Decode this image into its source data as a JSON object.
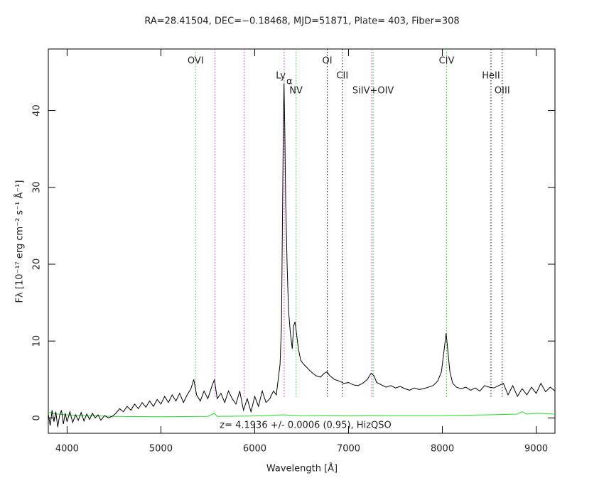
{
  "chart_data": {
    "type": "line",
    "title": "RA=28.41504, DEC=−0.18468, MJD=51871, Plate= 403, Fiber=308",
    "xlabel": "Wavelength [Å]",
    "ylabel": "Fλ [10⁻¹⁷ erg cm⁻² s⁻¹ Å⁻¹]",
    "annotation": "z= 4.1936 +/- 0.0006 (0.95), HizQSO",
    "xlim": [
      3800,
      9200
    ],
    "ylim": [
      -2,
      48
    ],
    "xticks": [
      4000,
      5000,
      6000,
      7000,
      8000,
      9000
    ],
    "yticks": [
      0,
      10,
      20,
      30,
      40
    ],
    "series": [
      {
        "color": "#000000",
        "x": [
          3800,
          3820,
          3840,
          3860,
          3880,
          3900,
          3920,
          3940,
          3960,
          3980,
          4000,
          4030,
          4060,
          4090,
          4120,
          4150,
          4180,
          4210,
          4240,
          4270,
          4300,
          4330,
          4360,
          4400,
          4440,
          4480,
          4520,
          4560,
          4600,
          4640,
          4680,
          4720,
          4760,
          4800,
          4840,
          4880,
          4920,
          4960,
          5000,
          5040,
          5080,
          5120,
          5160,
          5200,
          5240,
          5280,
          5320,
          5350,
          5380,
          5420,
          5460,
          5500,
          5540,
          5570,
          5600,
          5640,
          5680,
          5720,
          5760,
          5800,
          5840,
          5880,
          5920,
          5960,
          6000,
          6040,
          6080,
          6120,
          6160,
          6200,
          6230,
          6250,
          6270,
          6285,
          6295,
          6305,
          6312,
          6320,
          6330,
          6345,
          6360,
          6380,
          6400,
          6415,
          6430,
          6445,
          6465,
          6490,
          6520,
          6560,
          6600,
          6650,
          6700,
          6740,
          6770,
          6800,
          6850,
          6900,
          6950,
          7000,
          7050,
          7100,
          7150,
          7200,
          7240,
          7270,
          7300,
          7350,
          7400,
          7450,
          7500,
          7550,
          7600,
          7650,
          7700,
          7750,
          7800,
          7850,
          7900,
          7950,
          7990,
          8020,
          8040,
          8060,
          8080,
          8110,
          8150,
          8200,
          8250,
          8300,
          8350,
          8400,
          8450,
          8500,
          8550,
          8600,
          8650,
          8700,
          8750,
          8800,
          8850,
          8900,
          8950,
          9000,
          9050,
          9100,
          9150,
          9200
        ],
        "values": [
          0.5,
          -1,
          1,
          -0.5,
          0.8,
          -1.2,
          0.3,
          1,
          -0.8,
          0.6,
          -0.5,
          0.8,
          -0.6,
          0.4,
          -0.3,
          0.7,
          -0.4,
          0.5,
          -0.2,
          0.6,
          0,
          0.4,
          -0.3,
          0.3,
          0,
          0.2,
          0.6,
          1.2,
          0.8,
          1.5,
          1,
          1.8,
          1.2,
          2,
          1.4,
          2.2,
          1.5,
          2.4,
          1.8,
          2.8,
          2,
          3,
          2.2,
          3.2,
          2,
          3,
          3.8,
          5,
          3,
          2.2,
          3.5,
          2.5,
          4,
          5,
          2.5,
          3.2,
          2,
          3.5,
          2.5,
          1.8,
          3.5,
          1,
          2.5,
          0.8,
          2.8,
          1.5,
          3.5,
          2,
          2.5,
          3.5,
          3,
          5,
          7,
          12,
          25,
          38,
          43.5,
          38,
          28,
          20,
          14,
          11,
          9,
          12,
          12.5,
          11,
          9,
          7.5,
          7,
          6.5,
          6,
          5.5,
          5.3,
          5.8,
          6,
          5.5,
          5,
          4.8,
          4.5,
          4.6,
          4.3,
          4.2,
          4.5,
          5,
          5.8,
          5.5,
          4.6,
          4.3,
          4,
          4.2,
          3.9,
          4.1,
          3.8,
          3.6,
          3.9,
          3.7,
          3.8,
          4,
          4.2,
          4.8,
          6,
          9,
          11,
          8.5,
          6,
          4.5,
          4,
          3.8,
          4,
          3.6,
          3.9,
          3.5,
          4.2,
          4,
          3.9,
          4.2,
          4.5,
          3,
          4.2,
          2.8,
          3.8,
          3,
          4,
          3.2,
          4.5,
          3.4,
          4,
          3.5
        ]
      },
      {
        "color": "#22dd22",
        "x": [
          3800,
          3850,
          3900,
          4000,
          4200,
          4500,
          5000,
          5500,
          5570,
          5600,
          6000,
          6300,
          6500,
          7000,
          7500,
          8000,
          8500,
          8800,
          8850,
          8900,
          9000,
          9200
        ],
        "values": [
          0.8,
          0.6,
          0.5,
          0.4,
          0.3,
          0.2,
          0.15,
          0.2,
          0.6,
          0.2,
          0.25,
          0.4,
          0.3,
          0.25,
          0.3,
          0.3,
          0.4,
          0.5,
          0.8,
          0.5,
          0.6,
          0.5
        ]
      }
    ],
    "lines": [
      {
        "name": "OVI",
        "wavelength": 5370,
        "color": "#22cc22"
      },
      {
        "name": "Ly",
        "sub": "α",
        "wavelength": 6314,
        "color": "#cc22cc"
      },
      {
        "name": "NV",
        "wavelength": 6440,
        "color": "#22cc22"
      },
      {
        "name": "OI",
        "wavelength": 6773,
        "color": "#000000"
      },
      {
        "name": "CII",
        "wavelength": 6934,
        "color": "#000000"
      },
      {
        "name": "SiIV+OIV",
        "wavelength": 7262,
        "color": "#22cc22"
      },
      {
        "name": "CIV",
        "wavelength": 8045,
        "color": "#22cc22"
      },
      {
        "name": "HeII",
        "wavelength": 8518,
        "color": "#000000"
      },
      {
        "name": "OIII",
        "wavelength": 8638,
        "color": "#000000"
      }
    ],
    "sky_lines": {
      "color": "#cc22cc",
      "wavelengths": [
        5577,
        5890,
        7246
      ]
    }
  }
}
